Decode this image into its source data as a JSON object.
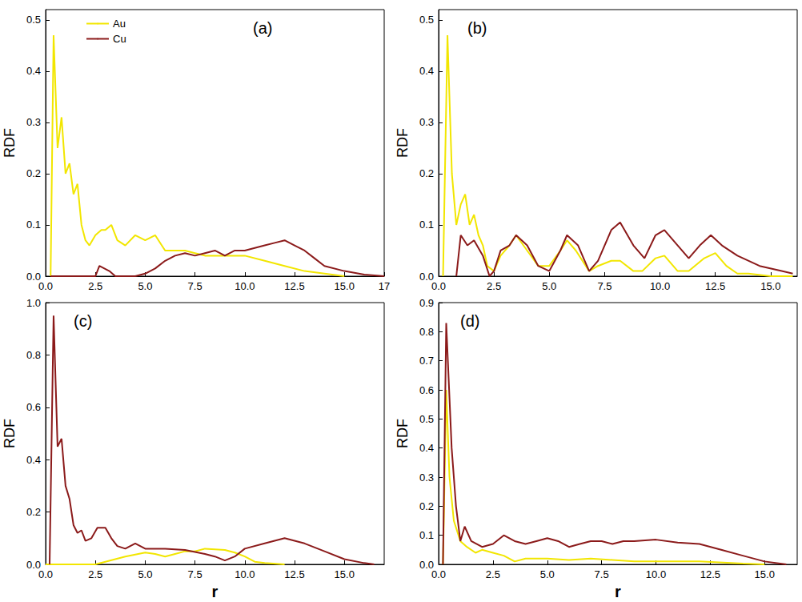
{
  "chart_data": [
    {
      "type": "line",
      "title": "(a)",
      "ylabel": "RDF",
      "legend": "upper left",
      "grid": false,
      "xlim": [
        0,
        17
      ],
      "xticks": [
        {
          "value": 0,
          "label": "0.0"
        },
        {
          "value": 2.5,
          "label": "2.5"
        },
        {
          "value": 5,
          "label": "5.0"
        },
        {
          "value": 7.5,
          "label": "7.5"
        },
        {
          "value": 10,
          "label": "10.0"
        },
        {
          "value": 12.5,
          "label": "12.5"
        },
        {
          "value": 15,
          "label": "15.0"
        },
        17
      ],
      "ylim": [
        0,
        0.52
      ],
      "yticks": [
        {
          "value": 0,
          "label": "0.0"
        },
        0.1,
        0.2,
        0.3,
        0.4,
        0.5
      ],
      "series": [
        {
          "name": "Au",
          "color": "#f2e600",
          "x": [
            0.25,
            0.4,
            0.6,
            0.8,
            1.0,
            1.2,
            1.4,
            1.6,
            1.8,
            2.0,
            2.2,
            2.5,
            2.8,
            3.0,
            3.3,
            3.6,
            4.0,
            4.5,
            5.0,
            5.5,
            6.0,
            6.5,
            7.0,
            7.5,
            8.0,
            9.0,
            10.0,
            11.0,
            12.0,
            13.0,
            14.0,
            15.0
          ],
          "values": [
            0,
            0.47,
            0.25,
            0.31,
            0.2,
            0.22,
            0.16,
            0.18,
            0.1,
            0.07,
            0.06,
            0.08,
            0.09,
            0.09,
            0.1,
            0.07,
            0.06,
            0.08,
            0.07,
            0.08,
            0.05,
            0.05,
            0.05,
            0.045,
            0.04,
            0.04,
            0.04,
            0.03,
            0.02,
            0.01,
            0.005,
            0
          ]
        },
        {
          "name": "Cu",
          "color": "#8b1a1a",
          "x": [
            0.25,
            2.5,
            2.7,
            3.2,
            3.5,
            4.5,
            5.0,
            5.5,
            6.0,
            6.5,
            7.0,
            7.5,
            8.0,
            8.5,
            9.0,
            9.5,
            10.0,
            10.5,
            11.0,
            11.5,
            12.0,
            12.5,
            13.0,
            13.5,
            14.0,
            15.0,
            16.0,
            17.0
          ],
          "values": [
            0,
            0,
            0.02,
            0.01,
            0,
            0,
            0.005,
            0.015,
            0.03,
            0.04,
            0.045,
            0.04,
            0.045,
            0.05,
            0.04,
            0.05,
            0.05,
            0.055,
            0.06,
            0.065,
            0.07,
            0.06,
            0.05,
            0.035,
            0.02,
            0.01,
            0.003,
            0
          ]
        }
      ]
    },
    {
      "type": "line",
      "title": "(b)",
      "ylabel": "RDF",
      "grid": false,
      "xlim": [
        0,
        16.2
      ],
      "xticks": [
        {
          "value": 0,
          "label": "0.0"
        },
        {
          "value": 2.5,
          "label": "2.5"
        },
        {
          "value": 5,
          "label": "5.0"
        },
        {
          "value": 7.5,
          "label": "7.5"
        },
        {
          "value": 10,
          "label": "10.0"
        },
        {
          "value": 12.5,
          "label": "12.5"
        },
        {
          "value": 15,
          "label": "15.0"
        }
      ],
      "ylim": [
        0,
        0.52
      ],
      "yticks": [
        {
          "value": 0,
          "label": "0.0"
        },
        0.1,
        0.2,
        0.3,
        0.4,
        0.5
      ],
      "series": [
        {
          "name": "Au",
          "color": "#f2e600",
          "x": [
            0.2,
            0.4,
            0.6,
            0.8,
            1.0,
            1.2,
            1.4,
            1.6,
            1.8,
            2.0,
            2.2,
            2.5,
            2.8,
            3.2,
            3.5,
            4.0,
            4.5,
            5.0,
            5.5,
            5.8,
            6.2,
            6.8,
            7.2,
            7.8,
            8.2,
            8.8,
            9.2,
            9.8,
            10.2,
            10.8,
            11.3,
            12.0,
            12.5,
            13.0,
            13.5,
            14.0,
            15.0,
            16.0
          ],
          "values": [
            0,
            0.47,
            0.2,
            0.1,
            0.14,
            0.16,
            0.1,
            0.12,
            0.08,
            0.06,
            0.02,
            0.01,
            0.04,
            0.06,
            0.08,
            0.05,
            0.02,
            0.02,
            0.05,
            0.07,
            0.05,
            0.01,
            0.02,
            0.03,
            0.03,
            0.01,
            0.01,
            0.035,
            0.04,
            0.01,
            0.01,
            0.035,
            0.045,
            0.02,
            0.005,
            0.005,
            0,
            0
          ]
        },
        {
          "name": "Cu",
          "color": "#8b1a1a",
          "x": [
            0.8,
            1.0,
            1.3,
            1.6,
            2.0,
            2.3,
            2.5,
            2.8,
            3.2,
            3.5,
            4.0,
            4.5,
            5.0,
            5.5,
            5.8,
            6.3,
            6.8,
            7.2,
            7.8,
            8.2,
            8.8,
            9.3,
            9.8,
            10.2,
            10.8,
            11.3,
            11.8,
            12.3,
            12.8,
            13.5,
            14.5,
            15.5,
            16.0
          ],
          "values": [
            0,
            0.08,
            0.06,
            0.07,
            0.04,
            0,
            0.01,
            0.05,
            0.06,
            0.08,
            0.06,
            0.02,
            0.01,
            0.05,
            0.08,
            0.06,
            0.01,
            0.03,
            0.09,
            0.105,
            0.06,
            0.035,
            0.08,
            0.09,
            0.06,
            0.035,
            0.06,
            0.08,
            0.06,
            0.04,
            0.02,
            0.01,
            0.005
          ]
        }
      ]
    },
    {
      "type": "line",
      "title": "(c)",
      "xlabel": "r",
      "ylabel": "RDF",
      "grid": false,
      "xlim": [
        0,
        17
      ],
      "xticks": [
        {
          "value": 0,
          "label": "0.0"
        },
        {
          "value": 2.5,
          "label": "2.5"
        },
        {
          "value": 5,
          "label": "5.0"
        },
        {
          "value": 7.5,
          "label": "7.5"
        },
        {
          "value": 10,
          "label": "10.0"
        },
        {
          "value": 12.5,
          "label": "12.5"
        },
        {
          "value": 15,
          "label": "15.0"
        }
      ],
      "ylim": [
        0,
        1.0
      ],
      "yticks": [
        {
          "value": 0,
          "label": "0.0"
        },
        0.2,
        0.4,
        0.6,
        0.8,
        {
          "value": 1.0,
          "label": "1.0"
        }
      ],
      "series": [
        {
          "name": "Au",
          "color": "#f2e600",
          "x": [
            0,
            2.5,
            3.0,
            3.5,
            4.0,
            5.0,
            5.5,
            6.0,
            6.5,
            7.0,
            7.5,
            8.0,
            9.0,
            9.5,
            10.0,
            10.5,
            11.0,
            12.0
          ],
          "values": [
            0,
            0,
            0.01,
            0.02,
            0.03,
            0.045,
            0.04,
            0.03,
            0.04,
            0.05,
            0.05,
            0.06,
            0.055,
            0.045,
            0.03,
            0.01,
            0.005,
            0
          ]
        },
        {
          "name": "Cu",
          "color": "#8b1a1a",
          "x": [
            0.2,
            0.4,
            0.6,
            0.8,
            1.0,
            1.2,
            1.4,
            1.6,
            1.8,
            2.0,
            2.3,
            2.6,
            3.0,
            3.3,
            3.6,
            4.0,
            4.5,
            5.0,
            6.0,
            7.0,
            8.0,
            8.5,
            9.0,
            9.5,
            10.0,
            11.0,
            11.5,
            12.0,
            12.5,
            13.0,
            14.0,
            15.0,
            16.0,
            16.5
          ],
          "values": [
            0,
            0.95,
            0.45,
            0.48,
            0.3,
            0.25,
            0.15,
            0.12,
            0.13,
            0.09,
            0.1,
            0.14,
            0.14,
            0.1,
            0.07,
            0.06,
            0.08,
            0.06,
            0.06,
            0.055,
            0.04,
            0.03,
            0.015,
            0.03,
            0.06,
            0.08,
            0.09,
            0.1,
            0.09,
            0.08,
            0.05,
            0.02,
            0.005,
            0
          ]
        }
      ]
    },
    {
      "type": "line",
      "title": "(d)",
      "xlabel": "r",
      "ylabel": "RDF",
      "grid": false,
      "xlim": [
        0,
        16.5
      ],
      "xticks": [
        {
          "value": 0,
          "label": "0.0"
        },
        {
          "value": 2.5,
          "label": "2.5"
        },
        {
          "value": 5,
          "label": "5.0"
        },
        {
          "value": 7.5,
          "label": "7.5"
        },
        {
          "value": 10,
          "label": "10.0"
        },
        {
          "value": 12.5,
          "label": "12.5"
        },
        {
          "value": 15,
          "label": "15.0"
        }
      ],
      "ylim": [
        0,
        0.9
      ],
      "yticks": [
        {
          "value": 0,
          "label": "0.0"
        },
        0.1,
        0.2,
        0.3,
        0.4,
        0.5,
        0.6,
        0.7,
        0.8,
        0.9
      ],
      "series": [
        {
          "name": "Au",
          "color": "#f2e600",
          "x": [
            0.2,
            0.35,
            0.5,
            0.7,
            1.0,
            1.3,
            1.7,
            2.0,
            2.5,
            3.0,
            3.5,
            4.0,
            5.0,
            6.0,
            7.0,
            8.0,
            9.0,
            10.0,
            12.0,
            14.0,
            15.0
          ],
          "values": [
            0,
            0.6,
            0.3,
            0.15,
            0.08,
            0.06,
            0.04,
            0.05,
            0.04,
            0.03,
            0.01,
            0.02,
            0.02,
            0.015,
            0.02,
            0.015,
            0.01,
            0.01,
            0.01,
            0.003,
            0
          ]
        },
        {
          "name": "Cu",
          "color": "#8b1a1a",
          "x": [
            0.2,
            0.35,
            0.6,
            0.8,
            1.0,
            1.2,
            1.5,
            2.0,
            2.5,
            3.0,
            3.5,
            4.0,
            4.5,
            5.0,
            5.5,
            6.0,
            6.5,
            7.0,
            7.5,
            8.0,
            8.5,
            9.0,
            10.0,
            11.0,
            12.0,
            13.0,
            14.0,
            15.0,
            16.0
          ],
          "values": [
            0,
            0.83,
            0.4,
            0.2,
            0.08,
            0.13,
            0.08,
            0.06,
            0.07,
            0.1,
            0.08,
            0.07,
            0.08,
            0.09,
            0.08,
            0.06,
            0.07,
            0.08,
            0.08,
            0.07,
            0.08,
            0.08,
            0.085,
            0.075,
            0.07,
            0.05,
            0.03,
            0.01,
            0
          ]
        }
      ]
    }
  ]
}
